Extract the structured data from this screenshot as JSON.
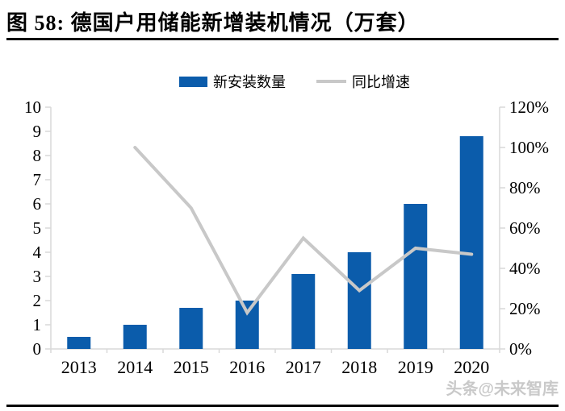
{
  "header": {
    "title": "图 58:  德国户用储能新增装机情况（万套）"
  },
  "legend": {
    "items": [
      {
        "label": "新安装数量",
        "type": "bar",
        "color": "#0B5CAB"
      },
      {
        "label": "同比增速",
        "type": "line",
        "color": "#C8C8C8"
      }
    ]
  },
  "chart_data": {
    "type": "bar+line combo",
    "title": "德国户用储能新增装机情况（万套）",
    "categories": [
      "2013",
      "2014",
      "2015",
      "2016",
      "2017",
      "2018",
      "2019",
      "2020"
    ],
    "series": [
      {
        "name": "新安装数量",
        "type": "bar",
        "axis": "left",
        "color": "#0B5CAB",
        "values": [
          0.5,
          1.0,
          1.7,
          2.0,
          3.1,
          4.0,
          6.0,
          8.8
        ]
      },
      {
        "name": "同比增速",
        "type": "line",
        "axis": "right",
        "color": "#C8C8C8",
        "values": [
          null,
          100,
          70,
          18,
          55,
          29,
          50,
          47
        ]
      }
    ],
    "left_axis": {
      "min": 0,
      "max": 10,
      "ticks": [
        "0",
        "1",
        "2",
        "3",
        "4",
        "5",
        "6",
        "7",
        "8",
        "9",
        "10"
      ]
    },
    "right_axis": {
      "min": 0,
      "max": 120,
      "ticks": [
        "0%",
        "20%",
        "40%",
        "60%",
        "80%",
        "100%",
        "120%"
      ]
    },
    "grid": false,
    "legend_position": "top-center",
    "axis_color": "#D9D9D9"
  },
  "watermark": {
    "text": "头条@未来智库"
  }
}
